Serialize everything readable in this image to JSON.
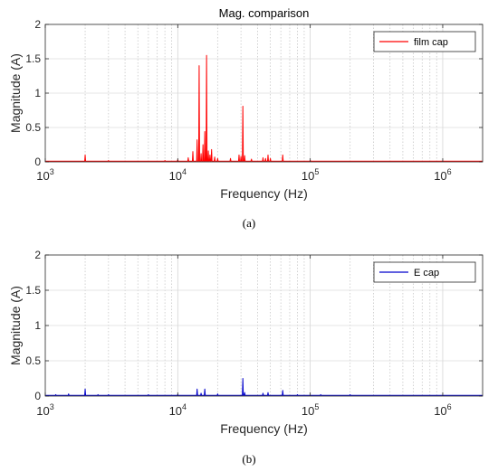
{
  "chart_data": [
    {
      "type": "line",
      "title": "Mag. comparison",
      "xlabel": "Frequency (Hz)",
      "ylabel": "Magnitude (A)",
      "xscale": "log",
      "xlim": [
        1000,
        2000000
      ],
      "ylim": [
        0,
        2
      ],
      "yticks": [
        0,
        0.5,
        1,
        1.5,
        2
      ],
      "ytick_labels": [
        "0",
        "0.5",
        "1",
        "1.5",
        "2"
      ],
      "xticks": [
        1000,
        10000,
        100000,
        1000000
      ],
      "xtick_labels": [
        {
          "base": "10",
          "exp": "3"
        },
        {
          "base": "10",
          "exp": "4"
        },
        {
          "base": "10",
          "exp": "5"
        },
        {
          "base": "10",
          "exp": "6"
        }
      ],
      "grid": true,
      "legend_position": "top-right",
      "caption": "(a)",
      "series": [
        {
          "name": "film cap",
          "color": "#ff0000",
          "baseline": 0.01,
          "peaks": [
            [
              2000,
              0.1
            ],
            [
              3000,
              0.02
            ],
            [
              5000,
              0.01
            ],
            [
              8000,
              0.02
            ],
            [
              10000,
              0.03
            ],
            [
              12000,
              0.06
            ],
            [
              13000,
              0.15
            ],
            [
              14000,
              0.32
            ],
            [
              14500,
              1.4
            ],
            [
              15000,
              0.12
            ],
            [
              15500,
              0.25
            ],
            [
              16000,
              0.44
            ],
            [
              16500,
              1.55
            ],
            [
              17000,
              0.16
            ],
            [
              17500,
              0.1
            ],
            [
              18000,
              0.18
            ],
            [
              19000,
              0.07
            ],
            [
              20000,
              0.05
            ],
            [
              25000,
              0.05
            ],
            [
              29000,
              0.1
            ],
            [
              30000,
              0.08
            ],
            [
              31000,
              0.81
            ],
            [
              32000,
              0.09
            ],
            [
              36000,
              0.04
            ],
            [
              44000,
              0.06
            ],
            [
              46000,
              0.05
            ],
            [
              48000,
              0.1
            ],
            [
              50000,
              0.05
            ],
            [
              62000,
              0.1
            ],
            [
              100000,
              0.02
            ],
            [
              200000,
              0.01
            ]
          ]
        }
      ]
    },
    {
      "type": "line",
      "title": "",
      "xlabel": "Frequency (Hz)",
      "ylabel": "Magnitude (A)",
      "xscale": "log",
      "xlim": [
        1000,
        2000000
      ],
      "ylim": [
        0,
        2
      ],
      "yticks": [
        0,
        0.5,
        1,
        1.5,
        2
      ],
      "ytick_labels": [
        "0",
        "0.5",
        "1",
        "1.5",
        "2"
      ],
      "xticks": [
        1000,
        10000,
        100000,
        1000000
      ],
      "xtick_labels": [
        {
          "base": "10",
          "exp": "3"
        },
        {
          "base": "10",
          "exp": "4"
        },
        {
          "base": "10",
          "exp": "5"
        },
        {
          "base": "10",
          "exp": "6"
        }
      ],
      "grid": true,
      "legend_position": "top-right",
      "caption": "(b)",
      "series": [
        {
          "name": "E cap",
          "color": "#0000cc",
          "baseline": 0.01,
          "peaks": [
            [
              1200,
              0.02
            ],
            [
              1500,
              0.03
            ],
            [
              2000,
              0.1
            ],
            [
              2500,
              0.02
            ],
            [
              3000,
              0.02
            ],
            [
              6000,
              0.02
            ],
            [
              10000,
              0.02
            ],
            [
              14000,
              0.1
            ],
            [
              15000,
              0.04
            ],
            [
              16000,
              0.1
            ],
            [
              20000,
              0.03
            ],
            [
              31000,
              0.25
            ],
            [
              32000,
              0.05
            ],
            [
              44000,
              0.04
            ],
            [
              48000,
              0.05
            ],
            [
              62000,
              0.08
            ],
            [
              80000,
              0.02
            ],
            [
              120000,
              0.02
            ],
            [
              200000,
              0.02
            ],
            [
              400000,
              0.01
            ]
          ]
        }
      ]
    }
  ]
}
